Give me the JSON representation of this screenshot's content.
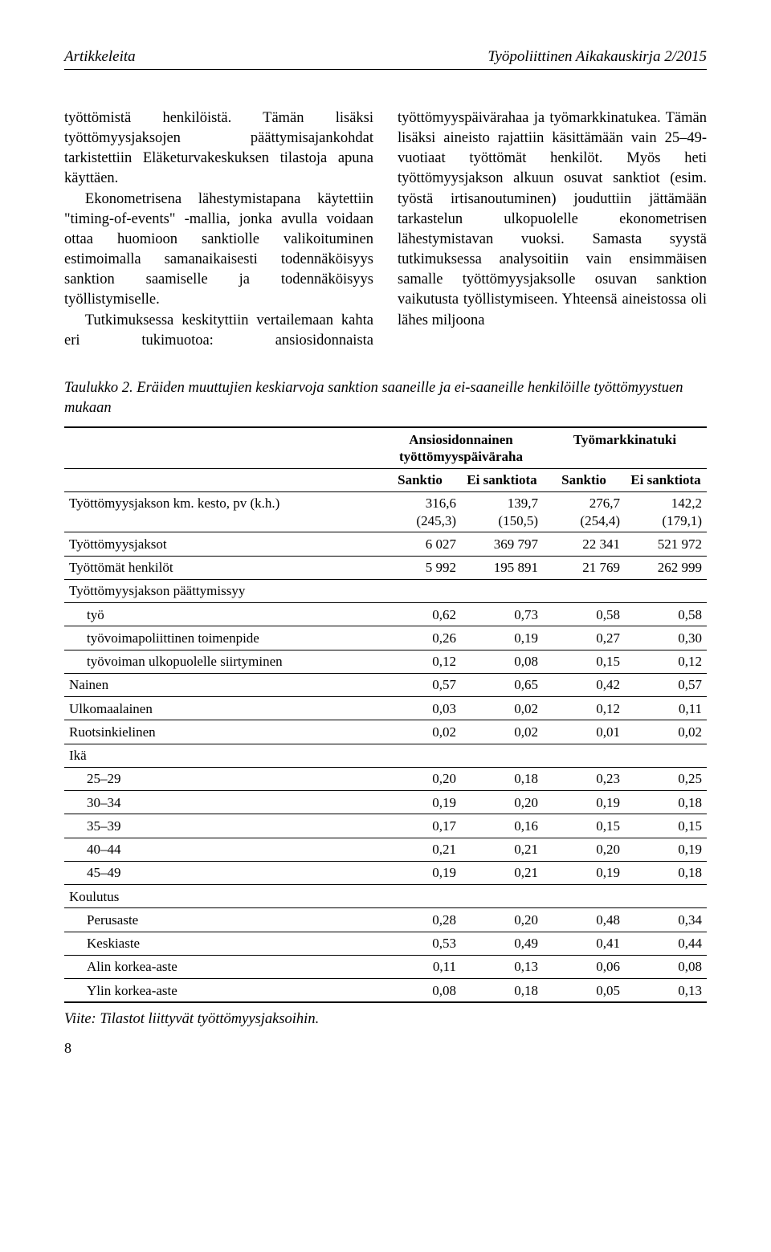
{
  "header": {
    "left": "Artikkeleita",
    "right": "Työpoliittinen Aikakauskirja 2/2015"
  },
  "body": {
    "p1": "työttömistä henkilöistä. Tämän lisäksi työttömyysjaksojen päättymisajankohdat tarkistettiin Eläketurvakeskuksen tilastoja apuna käyttäen.",
    "p2": "Ekonometrisena lähestymistapana käytettiin \"timing-of-events\" -mallia, jonka avulla voidaan ottaa huomioon sanktiolle valikoituminen estimoimalla samanaikaisesti todennäköisyys sanktion saamiselle ja todennäköisyys työllistymiselle.",
    "p3a": "Tutkimuksessa keskityttiin vertailemaan kahta eri tukimuotoa: ansiosidonnaista työt",
    "p3b": "tömyyspäivärahaa ja työmarkkinatukea. Tämän lisäksi aineisto rajattiin käsittämään vain 25–49-vuotiaat työttömät henkilöt. Myös heti työttömyysjakson alkuun osuvat sanktiot (esim. työstä irtisanoutuminen) jouduttiin jättämään tarkastelun ulkopuolelle ekonometrisen lähestymistavan vuoksi. Samasta syystä tutkimuksessa analysoitiin vain ensimmäisen samalle työttömyysjaksolle osuvan sanktion vaikutusta työllistymiseen. Yhteensä aineistossa oli lähes miljoona"
  },
  "table_caption": "Taulukko 2. Eräiden muuttujien keskiarvoja sanktion saaneille ja ei-saaneille henkilöille työttömyystuen mukaan",
  "table": {
    "group_heads": [
      "Ansiosidonnainen työttömyyspäiväraha",
      "Työmarkkinatuki"
    ],
    "subheads": [
      "Sanktio",
      "Ei sanktiota",
      "Sanktio",
      "Ei sanktiota"
    ],
    "rows": [
      {
        "label": "Työttömyysjakson km. kesto, pv (k.h.)",
        "c1": "316,6",
        "c1b": "(245,3)",
        "c2": "139,7",
        "c2b": "(150,5)",
        "c3": "276,7",
        "c3b": "(254,4)",
        "c4": "142,2",
        "c4b": "(179,1)"
      },
      {
        "label": "Työttömyysjaksot",
        "c1": "6 027",
        "c2": "369 797",
        "c3": "22 341",
        "c4": "521 972"
      },
      {
        "label": "Työttömät henkilöt",
        "c1": "5 992",
        "c2": "195 891",
        "c3": "21 769",
        "c4": "262 999"
      },
      {
        "section": "Työttömyysjakson päättymissyy"
      },
      {
        "sub": true,
        "label": "työ",
        "c1": "0,62",
        "c2": "0,73",
        "c3": "0,58",
        "c4": "0,58"
      },
      {
        "sub": true,
        "label": "työvoimapoliittinen toimenpide",
        "c1": "0,26",
        "c2": "0,19",
        "c3": "0,27",
        "c4": "0,30"
      },
      {
        "sub": true,
        "label": "työvoiman ulkopuolelle siirtyminen",
        "c1": "0,12",
        "c2": "0,08",
        "c3": "0,15",
        "c4": "0,12"
      },
      {
        "label": "Nainen",
        "c1": "0,57",
        "c2": "0,65",
        "c3": "0,42",
        "c4": "0,57"
      },
      {
        "label": "Ulkomaalainen",
        "c1": "0,03",
        "c2": "0,02",
        "c3": "0,12",
        "c4": "0,11"
      },
      {
        "label": "Ruotsinkielinen",
        "c1": "0,02",
        "c2": "0,02",
        "c3": "0,01",
        "c4": "0,02"
      },
      {
        "section": "Ikä"
      },
      {
        "sub": true,
        "label": "25–29",
        "c1": "0,20",
        "c2": "0,18",
        "c3": "0,23",
        "c4": "0,25"
      },
      {
        "sub": true,
        "label": "30–34",
        "c1": "0,19",
        "c2": "0,20",
        "c3": "0,19",
        "c4": "0,18"
      },
      {
        "sub": true,
        "label": "35–39",
        "c1": "0,17",
        "c2": "0,16",
        "c3": "0,15",
        "c4": "0,15"
      },
      {
        "sub": true,
        "label": "40–44",
        "c1": "0,21",
        "c2": "0,21",
        "c3": "0,20",
        "c4": "0,19"
      },
      {
        "sub": true,
        "label": "45–49",
        "c1": "0,19",
        "c2": "0,21",
        "c3": "0,19",
        "c4": "0,18"
      },
      {
        "section": "Koulutus"
      },
      {
        "sub": true,
        "label": "Perusaste",
        "c1": "0,28",
        "c2": "0,20",
        "c3": "0,48",
        "c4": "0,34"
      },
      {
        "sub": true,
        "label": "Keskiaste",
        "c1": "0,53",
        "c2": "0,49",
        "c3": "0,41",
        "c4": "0,44"
      },
      {
        "sub": true,
        "label": "Alin korkea-aste",
        "c1": "0,11",
        "c2": "0,13",
        "c3": "0,06",
        "c4": "0,08"
      },
      {
        "sub": true,
        "label": "Ylin korkea-aste",
        "c1": "0,08",
        "c2": "0,18",
        "c3": "0,05",
        "c4": "0,13"
      }
    ]
  },
  "footnote": "Viite: Tilastot liittyvät työttömyysjaksoihin.",
  "page_num": "8"
}
